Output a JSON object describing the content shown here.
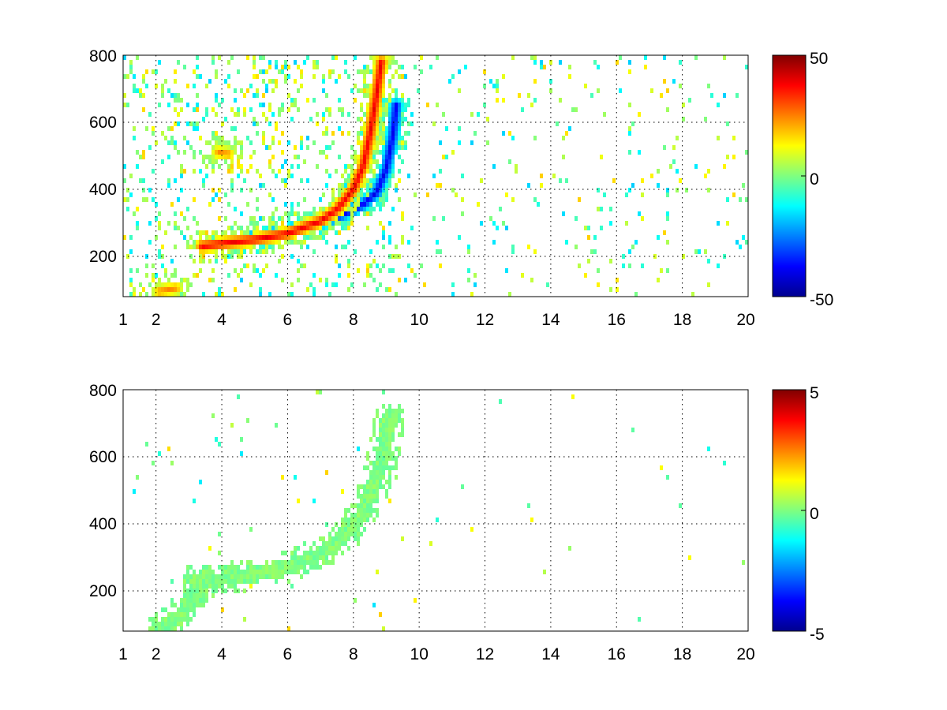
{
  "chart_data": [
    {
      "type": "heatmap",
      "title": "",
      "xlabel": "",
      "ylabel": "",
      "xlim": [
        1,
        20
      ],
      "ylim": [
        80,
        800
      ],
      "grid": true,
      "x_ticks": [
        "1",
        "2",
        "4",
        "6",
        "8",
        "10",
        "12",
        "14",
        "16",
        "18",
        "20"
      ],
      "x_tick_values": [
        1,
        2,
        4,
        6,
        8,
        10,
        12,
        14,
        16,
        18,
        20
      ],
      "y_ticks": [
        "200",
        "400",
        "600",
        "800"
      ],
      "y_tick_values": [
        200,
        400,
        600,
        800
      ],
      "colormap": "jet",
      "colorbar": {
        "min": -50,
        "max": 50,
        "ticks": [
          "50",
          "0",
          "-50"
        ],
        "tick_values": [
          50,
          0,
          -50
        ]
      },
      "features": [
        {
          "name": "positive ridge",
          "sign": "positive",
          "magnitude": 40,
          "points": [
            [
              3.4,
              230
            ],
            [
              4,
              238
            ],
            [
              5,
              250
            ],
            [
              6,
              268
            ],
            [
              7,
              305
            ],
            [
              7.5,
              340
            ],
            [
              8,
              400
            ],
            [
              8.3,
              470
            ],
            [
              8.5,
              560
            ],
            [
              8.7,
              680
            ],
            [
              8.85,
              780
            ]
          ]
        },
        {
          "name": "negative ridge",
          "sign": "negative",
          "magnitude": 40,
          "points": [
            [
              4.4,
              245
            ],
            [
              5.2,
              260
            ],
            [
              6,
              278
            ],
            [
              7,
              300
            ],
            [
              7.8,
              330
            ],
            [
              8.3,
              355
            ],
            [
              8.7,
              390
            ],
            [
              9,
              460
            ],
            [
              9.2,
              560
            ],
            [
              9.3,
              650
            ]
          ]
        },
        {
          "name": "blob near 4,510",
          "sign": "positive",
          "magnitude": 25,
          "points": [
            [
              3.9,
              510
            ],
            [
              4.2,
              505
            ]
          ]
        },
        {
          "name": "blob near 2.5,100",
          "sign": "positive",
          "magnitude": 25,
          "points": [
            [
              2.1,
              95
            ],
            [
              2.6,
              105
            ]
          ]
        }
      ]
    },
    {
      "type": "heatmap",
      "title": "",
      "xlabel": "",
      "ylabel": "",
      "xlim": [
        1,
        20
      ],
      "ylim": [
        80,
        800
      ],
      "grid": true,
      "x_ticks": [
        "1",
        "2",
        "4",
        "6",
        "8",
        "10",
        "12",
        "14",
        "16",
        "18",
        "20"
      ],
      "x_tick_values": [
        1,
        2,
        4,
        6,
        8,
        10,
        12,
        14,
        16,
        18,
        20
      ],
      "y_ticks": [
        "200",
        "400",
        "600",
        "800"
      ],
      "y_tick_values": [
        200,
        400,
        600,
        800
      ],
      "colormap": "jet",
      "colorbar": {
        "min": -5,
        "max": 5,
        "ticks": [
          "5",
          "0",
          "-5"
        ],
        "tick_values": [
          5,
          0,
          -5
        ]
      },
      "features": [
        {
          "name": "near-zero ridge",
          "sign": "near-zero",
          "magnitude": 0.3,
          "points": [
            [
              3.2,
              230
            ],
            [
              4,
              235
            ],
            [
              5,
              248
            ],
            [
              6,
              275
            ],
            [
              7,
              310
            ],
            [
              7.7,
              360
            ],
            [
              8.2,
              420
            ],
            [
              8.6,
              500
            ],
            [
              8.9,
              600
            ],
            [
              9.1,
              720
            ]
          ]
        },
        {
          "name": "near-zero lower ridge",
          "sign": "near-zero",
          "magnitude": 0.3,
          "points": [
            [
              2.2,
              95
            ],
            [
              2.6,
              110
            ],
            [
              3,
              160
            ],
            [
              3.4,
              210
            ]
          ]
        }
      ]
    }
  ]
}
